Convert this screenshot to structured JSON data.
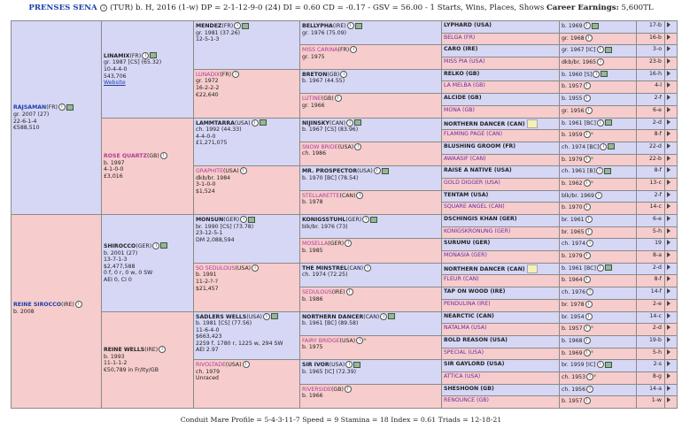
{
  "header": {
    "horse_name": "PRENSES SENA",
    "rest": "(TUR) b. H, 2016 (1-w) DP = 2-1-12-9-0 (24) DI = 0.60  CD = -0.17 - GSV = 56.00 - 1 Starts, Wins, Places, Shows ",
    "earnings_label": "Career Earnings:",
    "earnings": "5,600TL"
  },
  "gen1": [
    {
      "name": "RAJSAMAN",
      "tag": "(FR)",
      "l1": "gr. 2007 (27)",
      "l2": "22-6-1-4",
      "l3": "€588,510"
    },
    {
      "name": "REINE SIROCCO",
      "tag": "(IRE)",
      "l1": "b. 2008",
      "l2": "",
      "l3": ""
    }
  ],
  "gen2": [
    {
      "name": "LINAMIX",
      "tag": "(FR)",
      "lines": [
        "gr. 1987 [CS] (65.32)",
        "10-4-4-0",
        "543,706",
        "Website"
      ]
    },
    {
      "name": "ROSE QUARTZ",
      "tag": "(GB)",
      "lines": [
        "b. 1997",
        "4-1-0-0",
        "£3,016"
      ]
    },
    {
      "name": "SHIROCCO",
      "tag": "(GER)",
      "lines": [
        "b. 2001 (27)",
        "13-7-1-3",
        "$2,477,588",
        "0 f, 0 r, 0 w, 0 SW",
        "AEI 0, CI 0"
      ]
    },
    {
      "name": "REINE WELLS",
      "tag": "(IRE)",
      "lines": [
        "b. 1993",
        "11-1-1-2",
        "€50,789 in Fr/Ity/GB"
      ]
    }
  ],
  "gen3": [
    {
      "name": "MENDEZ",
      "tag": "(FR)",
      "lines": [
        "gr. 1981 (37.26)",
        "12-5-1-3"
      ]
    },
    {
      "name": "LUNADIX",
      "tag": "(FR)",
      "lines": [
        "gr. 1972",
        "16-2-2-2",
        "€22,640"
      ]
    },
    {
      "name": "LAMMTARRA",
      "tag": "(USA)",
      "lines": [
        "ch. 1992 (44.33)",
        "4-4-0-0",
        "£1,271,075"
      ]
    },
    {
      "name": "GRAPHITE",
      "tag": "(USA)",
      "lines": [
        "dkb/br. 1984",
        "3-1-0-0",
        "$1,524"
      ]
    },
    {
      "name": "MONSUN",
      "tag": "(GER)",
      "lines": [
        "br. 1990 [CS] (73.78)",
        "23-12-5-1",
        "DM 2,088,594"
      ]
    },
    {
      "name": "SO SEDULOUS",
      "tag": "(USA)",
      "lines": [
        "b. 1991",
        "11-2-?-?",
        "$21,457"
      ]
    },
    {
      "name": "SADLERS WELLS",
      "tag": "(USA)",
      "lines": [
        "b. 1981 [CS] (77.56)",
        "11-6-4-0",
        "$663,423",
        "2259 f, 1780 r, 1225 w, 294 SW",
        "AEI 2.97"
      ]
    },
    {
      "name": "RIVOLTADE",
      "tag": "(USA)",
      "lines": [
        "ch. 1979",
        "Unraced"
      ]
    }
  ],
  "gen4": [
    {
      "name": "BELLYPHA",
      "tag": "(IRE)",
      "l1": "gr. 1976 (75.09)"
    },
    {
      "name": "MISS CARINA",
      "tag": "(FR)",
      "l1": "gr. 1975"
    },
    {
      "name": "BRETON",
      "tag": "(GB)",
      "l1": "b. 1967 (44.55)"
    },
    {
      "name": "LUTINE",
      "tag": "(GB)",
      "l1": "gr. 1966"
    },
    {
      "name": "NIJINSKY",
      "tag": "(CAN)",
      "l1": "b. 1967 [CS] (83.96)"
    },
    {
      "name": "SNOW BRIDE",
      "tag": "(USA)",
      "l1": "ch. 1986"
    },
    {
      "name": "MR. PROSPECTOR",
      "tag": "(USA)",
      "l1": "b. 1970 [BC] (78.54)"
    },
    {
      "name": "STELLARETTE",
      "tag": "(CAN)",
      "l1": "b. 1978"
    },
    {
      "name": "KONIGSSTUHL",
      "tag": "(GER)",
      "l1": "blk/br. 1976 (73)"
    },
    {
      "name": "MOSELLA",
      "tag": "(GER)",
      "l1": "b. 1985"
    },
    {
      "name": "THE MINSTREL",
      "tag": "(CAN)",
      "l1": "ch. 1974 (72.25)"
    },
    {
      "name": "SEDULOUS",
      "tag": "(IRE)",
      "l1": "b. 1986"
    },
    {
      "name": "NORTHERN DANCER",
      "tag": "(CAN)",
      "l1": "b. 1961 [BC] (89.58)"
    },
    {
      "name": "FAIRY BRIDGE",
      "tag": "(USA)",
      "l1": "b. 1975"
    },
    {
      "name": "SIR IVOR",
      "tag": "(USA)",
      "l1": "b. 1965 [IC] (72.39)"
    },
    {
      "name": "RIVERSIDE",
      "tag": "(GB)",
      "l1": "b. 1966"
    }
  ],
  "gen5": [
    {
      "name": "LYPHARD (USA)",
      "info": "b. 1969",
      "num": "17-b"
    },
    {
      "name": "BELGA (FR)",
      "info": "gr. 1968",
      "num": "16-b"
    },
    {
      "name": "CARO (IRE)",
      "info": "gr. 1967 [IC]",
      "num": "3-o"
    },
    {
      "name": "MISS PIA (USA)",
      "info": "dkb/br. 1965",
      "num": "23-b"
    },
    {
      "name": "RELKO (GB)",
      "info": "b. 1960 [S]",
      "num": "16-h"
    },
    {
      "name": "LA MELBA (GB)",
      "info": "b. 1957",
      "num": "4-l"
    },
    {
      "name": "ALCIDE (GB)",
      "info": "b. 1955",
      "num": "2-f"
    },
    {
      "name": "MONA (GB)",
      "info": "gr. 1956",
      "num": "6-e"
    },
    {
      "name": "NORTHERN DANCER (CAN)",
      "info": "b. 1961 [BC]",
      "num": "2-d"
    },
    {
      "name": "FLAMING PAGE (CAN)",
      "info": "b. 1959",
      "num": "8-f"
    },
    {
      "name": "BLUSHING GROOM (FR)",
      "info": "ch. 1974 [BC]",
      "num": "22-d"
    },
    {
      "name": "AWAASIF (CAN)",
      "info": "b. 1979",
      "num": "22-b"
    },
    {
      "name": "RAISE A NATIVE (USA)",
      "info": "ch. 1961 [B]",
      "num": "8-f"
    },
    {
      "name": "GOLD DIGGER (USA)",
      "info": "b. 1962",
      "num": "13-c"
    },
    {
      "name": "TENTAM (USA)",
      "info": "blk/br. 1969",
      "num": "2-f"
    },
    {
      "name": "SQUARE ANGEL (CAN)",
      "info": "b. 1970",
      "num": "14-c"
    },
    {
      "name": "DSCHINGIS KHAN (GER)",
      "info": "br. 1961",
      "num": "6-e"
    },
    {
      "name": "KONIGSKRONUNG (GER)",
      "info": "br. 1965",
      "num": "5-h"
    },
    {
      "name": "SURUMU (GER)",
      "info": "ch. 1974",
      "num": "19"
    },
    {
      "name": "MONASIA (GER)",
      "info": "b. 1979",
      "num": "8-a"
    },
    {
      "name": "NORTHERN DANCER (CAN)",
      "info": "b. 1961 [BC]",
      "num": "2-d"
    },
    {
      "name": "FLEUR (CAN)",
      "info": "b. 1964",
      "num": "8-f"
    },
    {
      "name": "TAP ON WOOD (IRE)",
      "info": "ch. 1976",
      "num": "14-f"
    },
    {
      "name": "PENDULINA (IRE)",
      "info": "br. 1978",
      "num": "2-e"
    },
    {
      "name": "NEARCTIC (CAN)",
      "info": "br. 1954",
      "num": "14-c"
    },
    {
      "name": "NATALMA (USA)",
      "info": "b. 1957",
      "num": "2-d"
    },
    {
      "name": "BOLD REASON (USA)",
      "info": "b. 1968",
      "num": "19-b"
    },
    {
      "name": "SPECIAL (USA)",
      "info": "b. 1969",
      "num": "5-h"
    },
    {
      "name": "SIR GAYLORD (USA)",
      "info": "br. 1959 [IC]",
      "num": "2-s"
    },
    {
      "name": "ATTICA (USA)",
      "info": "ch. 1953",
      "num": "8-g"
    },
    {
      "name": "SHESHOON (GB)",
      "info": "ch. 1956",
      "num": "14-a"
    },
    {
      "name": "RENOUNCE (GB)",
      "info": "b. 1957",
      "num": "1-w"
    }
  ],
  "footer": "Conduit Mare Profile = 5-4-3-11-7   Speed = 9   Stamina = 18   Index = 0.61   Triads = 12-18-21",
  "colors": {
    "sire_bg": "#d6d6f5",
    "dam_bg": "#f6cccc",
    "link": "#1c3fa8"
  }
}
